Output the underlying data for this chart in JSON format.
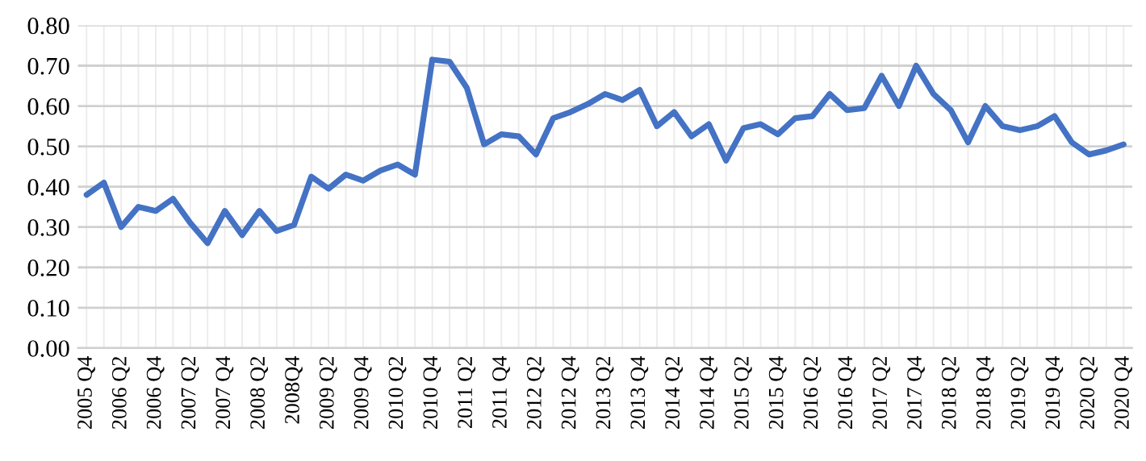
{
  "chart_data": {
    "type": "line",
    "categories": [
      "2005 Q4",
      null,
      "2006 Q2",
      null,
      "2006 Q4",
      null,
      "2007 Q2",
      null,
      "2007 Q4",
      null,
      "2008 Q2",
      null,
      "2008Q4",
      null,
      "2009 Q2",
      null,
      "2009 Q4",
      null,
      "2010 Q2",
      null,
      "2010 Q4",
      null,
      "2011 Q2",
      null,
      "2011 Q4",
      null,
      "2012 Q2",
      null,
      "2012 Q4",
      null,
      "2013 Q2",
      null,
      "2013 Q4",
      null,
      "2014 Q2",
      null,
      "2014 Q4",
      null,
      "2015 Q2",
      null,
      "2015 Q4",
      null,
      "2016 Q2",
      null,
      "2016 Q4",
      null,
      "2017 Q2",
      null,
      "2017 Q4",
      null,
      "2018 Q2",
      null,
      "2018 Q4",
      null,
      "2019 Q2",
      null,
      "2019 Q4",
      null,
      "2020 Q2",
      null,
      "2020 Q4"
    ],
    "series": [
      {
        "color": "#4472c4",
        "values": [
          0.38,
          0.41,
          0.3,
          0.35,
          0.34,
          0.37,
          0.31,
          0.26,
          0.34,
          0.28,
          0.34,
          0.29,
          0.305,
          0.425,
          0.395,
          0.43,
          0.415,
          0.44,
          0.455,
          0.43,
          0.715,
          0.71,
          0.645,
          0.505,
          0.53,
          0.525,
          0.48,
          0.57,
          0.585,
          0.605,
          0.63,
          0.615,
          0.64,
          0.55,
          0.585,
          0.525,
          0.555,
          0.465,
          0.545,
          0.555,
          0.53,
          0.57,
          0.575,
          0.63,
          0.59,
          0.595,
          0.675,
          0.6,
          0.7,
          0.63,
          0.59,
          0.51,
          0.6,
          0.55,
          0.54,
          0.55,
          0.575,
          0.51,
          0.48,
          0.49,
          0.505
        ]
      }
    ],
    "ylim": [
      0,
      0.8
    ],
    "yticks": [
      {
        "value": 0,
        "label": "0.00"
      },
      {
        "value": 0.1,
        "label": "0.10"
      },
      {
        "value": 0.2,
        "label": "0.20"
      },
      {
        "value": 0.3,
        "label": "0.30"
      },
      {
        "value": 0.4,
        "label": "0.40"
      },
      {
        "value": 0.5,
        "label": "0.50"
      },
      {
        "value": 0.6,
        "label": "0.60"
      },
      {
        "value": 0.7,
        "label": "0.70"
      },
      {
        "value": 0.8,
        "label": "0.80"
      }
    ],
    "grid": true,
    "marker": "none",
    "line_style": "solid"
  }
}
